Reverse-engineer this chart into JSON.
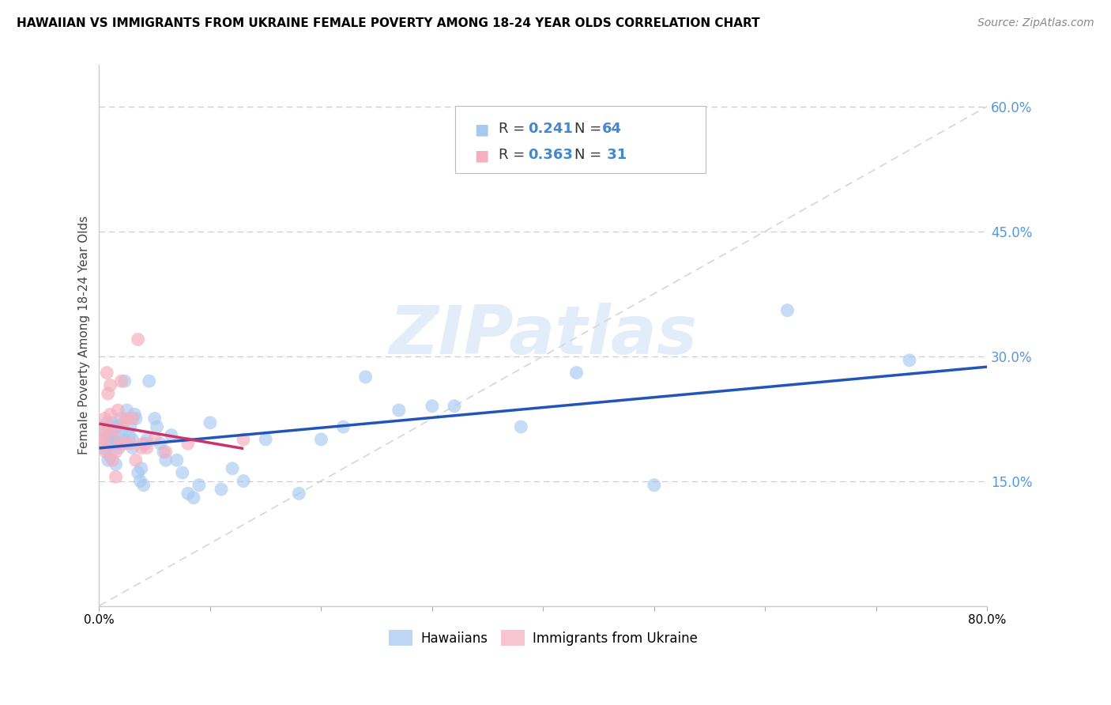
{
  "title": "HAWAIIAN VS IMMIGRANTS FROM UKRAINE FEMALE POVERTY AMONG 18-24 YEAR OLDS CORRELATION CHART",
  "source": "Source: ZipAtlas.com",
  "ylabel_label": "Female Poverty Among 18-24 Year Olds",
  "xlim": [
    0.0,
    0.8
  ],
  "ylim": [
    0.0,
    0.65
  ],
  "xticks": [
    0.0,
    0.1,
    0.2,
    0.3,
    0.4,
    0.5,
    0.6,
    0.7,
    0.8
  ],
  "xticklabels": [
    "0.0%",
    "",
    "",
    "",
    "",
    "",
    "",
    "",
    "80.0%"
  ],
  "yticks_right": [
    0.15,
    0.3,
    0.45,
    0.6
  ],
  "ytick_right_labels": [
    "15.0%",
    "30.0%",
    "45.0%",
    "60.0%"
  ],
  "hawaii_R": 0.241,
  "hawaii_N": 64,
  "ukraine_R": 0.363,
  "ukraine_N": 31,
  "hawaii_color": "#a8c8f0",
  "ukraine_color": "#f5b0c0",
  "hawaii_line_color": "#2255bb",
  "ukraine_line_color": "#cc3366",
  "diagonal_color": "#cccccc",
  "watermark": "ZIPatlas",
  "background_color": "#ffffff",
  "grid_color": "#cccccc",
  "hawaii_x": [
    0.005,
    0.005,
    0.007,
    0.008,
    0.008,
    0.01,
    0.01,
    0.01,
    0.01,
    0.012,
    0.013,
    0.015,
    0.015,
    0.015,
    0.017,
    0.018,
    0.018,
    0.02,
    0.02,
    0.02,
    0.022,
    0.023,
    0.025,
    0.027,
    0.028,
    0.03,
    0.03,
    0.032,
    0.033,
    0.035,
    0.037,
    0.038,
    0.04,
    0.042,
    0.043,
    0.045,
    0.05,
    0.052,
    0.055,
    0.058,
    0.06,
    0.065,
    0.07,
    0.075,
    0.08,
    0.085,
    0.09,
    0.1,
    0.11,
    0.12,
    0.13,
    0.15,
    0.18,
    0.2,
    0.22,
    0.24,
    0.27,
    0.3,
    0.32,
    0.38,
    0.43,
    0.5,
    0.62,
    0.73
  ],
  "hawaii_y": [
    0.21,
    0.19,
    0.22,
    0.2,
    0.175,
    0.215,
    0.205,
    0.195,
    0.18,
    0.22,
    0.2,
    0.215,
    0.195,
    0.17,
    0.195,
    0.215,
    0.19,
    0.225,
    0.21,
    0.195,
    0.2,
    0.27,
    0.235,
    0.205,
    0.215,
    0.2,
    0.19,
    0.23,
    0.225,
    0.16,
    0.15,
    0.165,
    0.145,
    0.195,
    0.2,
    0.27,
    0.225,
    0.215,
    0.195,
    0.185,
    0.175,
    0.205,
    0.175,
    0.16,
    0.135,
    0.13,
    0.145,
    0.22,
    0.14,
    0.165,
    0.15,
    0.2,
    0.135,
    0.2,
    0.215,
    0.275,
    0.235,
    0.24,
    0.24,
    0.215,
    0.28,
    0.145,
    0.355,
    0.295
  ],
  "hawaii_size": [
    200,
    200,
    150,
    150,
    150,
    150,
    150,
    150,
    150,
    150,
    150,
    150,
    150,
    150,
    150,
    150,
    150,
    150,
    150,
    150,
    150,
    150,
    150,
    150,
    150,
    150,
    150,
    150,
    150,
    150,
    150,
    150,
    150,
    150,
    150,
    150,
    150,
    150,
    150,
    150,
    150,
    150,
    150,
    150,
    150,
    150,
    150,
    150,
    150,
    150,
    150,
    150,
    150,
    150,
    150,
    150,
    150,
    150,
    150,
    150,
    150,
    150,
    150,
    150
  ],
  "ukraine_x": [
    0.003,
    0.004,
    0.005,
    0.005,
    0.006,
    0.007,
    0.008,
    0.008,
    0.01,
    0.01,
    0.012,
    0.013,
    0.015,
    0.015,
    0.017,
    0.018,
    0.02,
    0.022,
    0.023,
    0.025,
    0.028,
    0.03,
    0.033,
    0.035,
    0.038,
    0.04,
    0.043,
    0.05,
    0.06,
    0.08,
    0.13
  ],
  "ukraine_y": [
    0.21,
    0.195,
    0.225,
    0.2,
    0.185,
    0.28,
    0.255,
    0.215,
    0.265,
    0.23,
    0.175,
    0.21,
    0.185,
    0.155,
    0.235,
    0.195,
    0.27,
    0.22,
    0.195,
    0.225,
    0.195,
    0.225,
    0.175,
    0.32,
    0.19,
    0.195,
    0.19,
    0.2,
    0.185,
    0.195,
    0.2
  ],
  "ukraine_size": [
    150,
    150,
    150,
    150,
    150,
    150,
    150,
    150,
    150,
    150,
    150,
    150,
    150,
    150,
    150,
    150,
    150,
    150,
    150,
    150,
    150,
    150,
    150,
    150,
    150,
    150,
    150,
    150,
    150,
    150,
    150
  ]
}
